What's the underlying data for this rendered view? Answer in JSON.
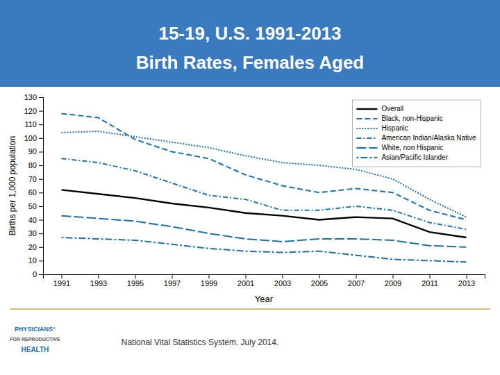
{
  "chart_data": {
    "type": "line",
    "title": "15-19, U.S. 1991-2013",
    "subtitle": "Birth Rates, Females Aged",
    "x_label": "Year",
    "y_label": "Births per 1,000 population",
    "annotations": [
      "National Vital Statistics System. July 2014.",
      "PHYSICIANS°",
      "FOR REPRODUCTIVE",
      "HEALTH"
    ],
    "x": [
      1991,
      1993,
      1995,
      1997,
      1999,
      2001,
      2003,
      2005,
      2007,
      2009,
      2011,
      2013
    ],
    "xlim": [
      1990,
      2014
    ],
    "xticks": [
      1991,
      1993,
      1995,
      1997,
      1999,
      2001,
      2003,
      2005,
      2007,
      2009,
      2011,
      2013
    ],
    "ylim": [
      0,
      130
    ],
    "yticks": [
      0,
      10,
      20,
      30,
      40,
      50,
      60,
      70,
      80,
      90,
      100,
      110,
      120,
      130
    ],
    "grid": false,
    "legend": "upper right",
    "series": [
      {
        "name": "Overall",
        "color": "#000000",
        "line_style": "solid",
        "values": [
          62,
          59,
          56,
          52,
          49,
          45,
          43,
          40,
          42,
          41,
          31,
          27
        ]
      },
      {
        "name": "Black, non-Hispanic",
        "color": "#1a6faf",
        "line_style": "dashed",
        "values": [
          118,
          115,
          99,
          90,
          85,
          73,
          65,
          60,
          63,
          60,
          47,
          40
        ]
      },
      {
        "name": "Hispanic",
        "color": "#1a6faf",
        "line_style": "dotted",
        "values": [
          104,
          105,
          101,
          97,
          93,
          87,
          82,
          80,
          77,
          70,
          55,
          42
        ]
      },
      {
        "name": "American Indian/Alaska Native",
        "color": "#1a6faf",
        "line_style": "dash-dot",
        "values": [
          85,
          82,
          76,
          67,
          58,
          55,
          47,
          47,
          50,
          47,
          38,
          33
        ]
      },
      {
        "name": "White, non Hispanic",
        "color": "#1a6faf",
        "line_style": "long-dash",
        "values": [
          43,
          41,
          39,
          35,
          30,
          26,
          24,
          26,
          26,
          25,
          21,
          20
        ]
      },
      {
        "name": "Asian/Pacific Islander",
        "color": "#1a6faf",
        "line_style": "dot-dash",
        "values": [
          27,
          26,
          25,
          22,
          19,
          17,
          16,
          17,
          14,
          11,
          10,
          9
        ]
      }
    ]
  }
}
